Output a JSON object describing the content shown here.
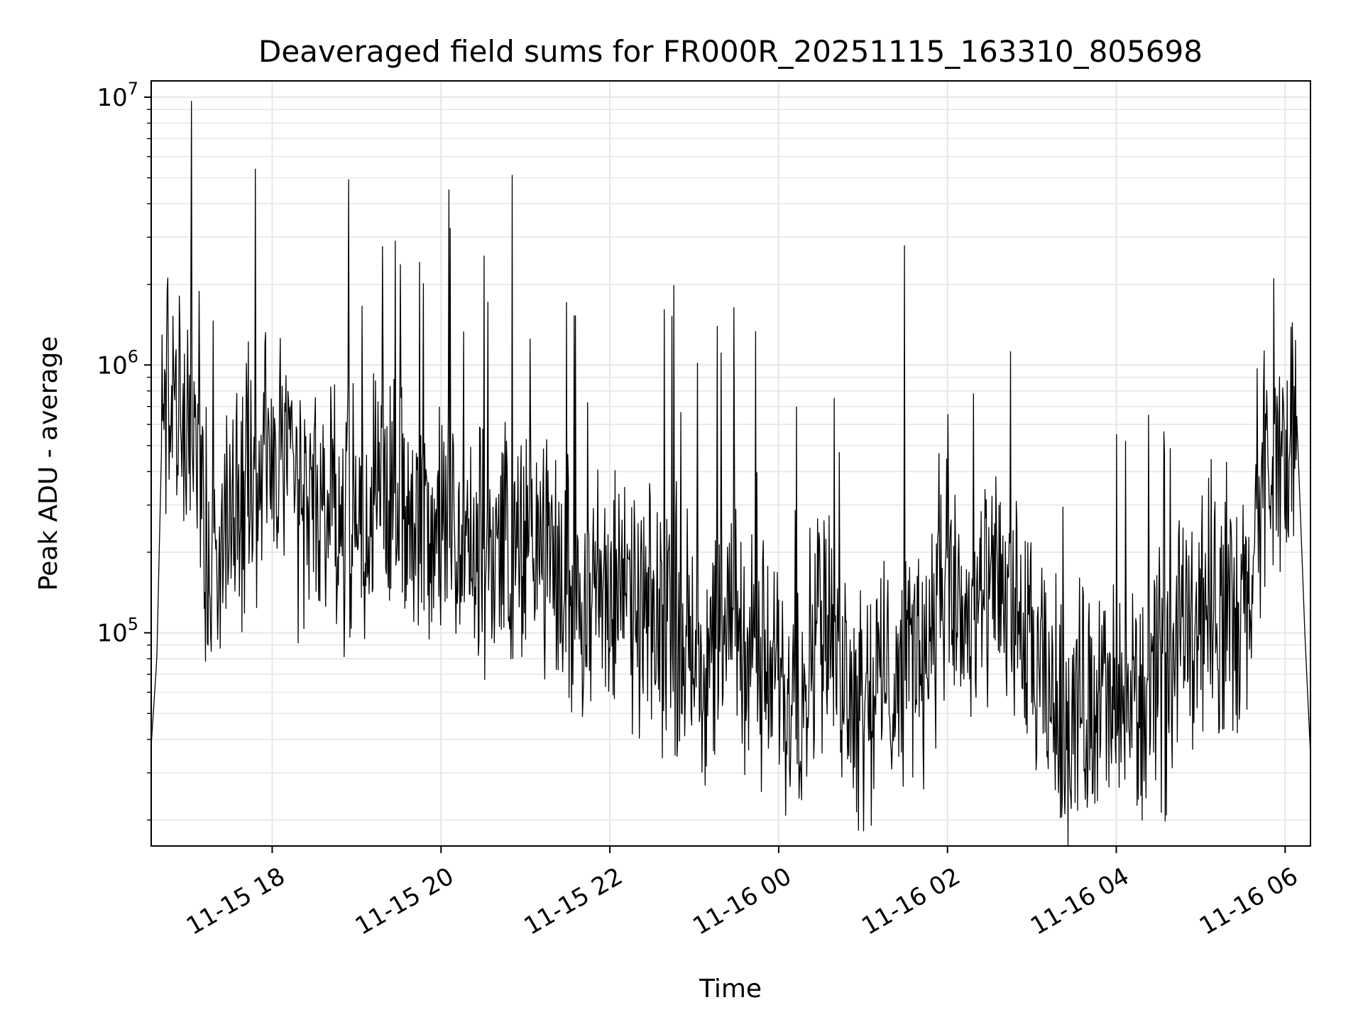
{
  "chart_data": {
    "type": "line",
    "title": "Deaveraged field sums for FR000R_20251115_163310_805698",
    "xlabel": "Time",
    "ylabel": "Peak ADU - average",
    "yscale": "log",
    "ylim": [
      16000,
      11500000
    ],
    "xlim": [
      "2025-11-15 16:34",
      "2025-11-16 06:18"
    ],
    "grid": true,
    "line_color": "#000000",
    "grid_color": "#e6e6e6",
    "x_ticks": [
      {
        "label": "11-15 18",
        "value": "2025-11-15 18:00"
      },
      {
        "label": "11-15 20",
        "value": "2025-11-15 20:00"
      },
      {
        "label": "11-15 22",
        "value": "2025-11-15 22:00"
      },
      {
        "label": "11-16 00",
        "value": "2025-11-16 00:00"
      },
      {
        "label": "11-16 02",
        "value": "2025-11-16 02:00"
      },
      {
        "label": "11-16 04",
        "value": "2025-11-16 04:00"
      },
      {
        "label": "11-16 06",
        "value": "2025-11-16 06:00"
      }
    ],
    "y_ticks": [
      {
        "base": "10",
        "exp": "5",
        "value": 100000
      },
      {
        "base": "10",
        "exp": "6",
        "value": 1000000
      },
      {
        "base": "10",
        "exp": "7",
        "value": 10000000
      }
    ],
    "series": [
      {
        "x": [
          "2025-11-15 16:34",
          "2025-11-15 16:38",
          "2025-11-15 16:42",
          "2025-11-15 16:46",
          "2025-11-15 16:50",
          "2025-11-15 16:54",
          "2025-11-15 17:00",
          "2025-11-15 17:06",
          "2025-11-15 17:12",
          "2025-11-15 17:18",
          "2025-11-15 17:24",
          "2025-11-15 17:30",
          "2025-11-15 17:36",
          "2025-11-15 17:42",
          "2025-11-15 17:48",
          "2025-11-15 17:54",
          "2025-11-15 18:00",
          "2025-11-15 18:06",
          "2025-11-15 18:12",
          "2025-11-15 18:18",
          "2025-11-15 18:24",
          "2025-11-15 18:30",
          "2025-11-15 18:40",
          "2025-11-15 18:50",
          "2025-11-15 19:00",
          "2025-11-15 19:10",
          "2025-11-15 19:20",
          "2025-11-15 19:30",
          "2025-11-15 19:40",
          "2025-11-15 19:50",
          "2025-11-15 20:00",
          "2025-11-15 20:10",
          "2025-11-15 20:20",
          "2025-11-15 20:30",
          "2025-11-15 20:45",
          "2025-11-15 21:00",
          "2025-11-15 21:15",
          "2025-11-15 21:30",
          "2025-11-15 21:45",
          "2025-11-15 22:00",
          "2025-11-15 22:15",
          "2025-11-15 22:30",
          "2025-11-15 22:45",
          "2025-11-15 23:00",
          "2025-11-15 23:15",
          "2025-11-15 23:30",
          "2025-11-15 23:45",
          "2025-11-16 00:00",
          "2025-11-16 00:15",
          "2025-11-16 00:30",
          "2025-11-16 00:45",
          "2025-11-16 01:00",
          "2025-11-16 01:15",
          "2025-11-16 01:30",
          "2025-11-16 01:45",
          "2025-11-16 02:00",
          "2025-11-16 02:15",
          "2025-11-16 02:30",
          "2025-11-16 02:45",
          "2025-11-16 03:00",
          "2025-11-16 03:15",
          "2025-11-16 03:30",
          "2025-11-16 03:45",
          "2025-11-16 04:00",
          "2025-11-16 04:15",
          "2025-11-16 04:30",
          "2025-11-16 04:45",
          "2025-11-16 05:00",
          "2025-11-16 05:15",
          "2025-11-16 05:30",
          "2025-11-16 05:45",
          "2025-11-16 06:00",
          "2025-11-16 06:08",
          "2025-11-16 06:14",
          "2025-11-16 06:18"
        ],
        "values": [
          38000,
          80000,
          700000,
          900000,
          650000,
          550000,
          600000,
          500000,
          250000,
          180000,
          200000,
          300000,
          280000,
          350000,
          300000,
          400000,
          500000,
          450000,
          350000,
          300000,
          320000,
          280000,
          300000,
          260000,
          280000,
          300000,
          330000,
          300000,
          260000,
          250000,
          240000,
          210000,
          190000,
          180000,
          240000,
          200000,
          180000,
          150000,
          140000,
          150000,
          120000,
          110000,
          100000,
          90000,
          80000,
          120000,
          80000,
          60000,
          70000,
          110000,
          70000,
          60000,
          65000,
          80000,
          90000,
          140000,
          110000,
          130000,
          140000,
          70000,
          55000,
          50000,
          60000,
          50000,
          55000,
          60000,
          90000,
          130000,
          110000,
          100000,
          350000,
          500000,
          700000,
          100000,
          35000
        ]
      }
    ]
  }
}
